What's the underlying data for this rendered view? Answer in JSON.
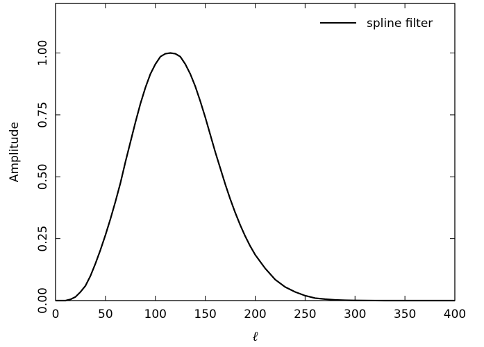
{
  "chart_data": {
    "type": "line",
    "title": "",
    "xlabel": "ℓ",
    "ylabel": "Amplitude",
    "xlim": [
      0,
      400
    ],
    "ylim": [
      0,
      1.2
    ],
    "grid": false,
    "legend_position": "top-right",
    "x_ticks": [
      0,
      50,
      100,
      150,
      200,
      250,
      300,
      350,
      400
    ],
    "x_tick_labels": [
      "0",
      "50",
      "100",
      "150",
      "200",
      "250",
      "300",
      "350",
      "400"
    ],
    "y_ticks": [
      0,
      0.25,
      0.5,
      0.75,
      1.0
    ],
    "y_tick_labels": [
      "0.00",
      "0.25",
      "0.50",
      "0.75",
      "1.00"
    ],
    "series": [
      {
        "name": "spline filter",
        "color": "#000000",
        "x": [
          0,
          10,
          15,
          20,
          25,
          30,
          35,
          40,
          45,
          50,
          55,
          60,
          65,
          70,
          75,
          80,
          85,
          90,
          95,
          100,
          105,
          110,
          115,
          120,
          125,
          130,
          135,
          140,
          145,
          150,
          155,
          160,
          165,
          170,
          175,
          180,
          185,
          190,
          195,
          200,
          210,
          220,
          230,
          240,
          250,
          260,
          270,
          280,
          290,
          300,
          310,
          320,
          330,
          340,
          350,
          400
        ],
        "y": [
          0.0,
          0.0,
          0.005,
          0.015,
          0.035,
          0.06,
          0.1,
          0.15,
          0.205,
          0.265,
          0.33,
          0.4,
          0.475,
          0.56,
          0.64,
          0.72,
          0.795,
          0.86,
          0.915,
          0.955,
          0.985,
          0.997,
          1.0,
          0.997,
          0.985,
          0.955,
          0.915,
          0.865,
          0.805,
          0.74,
          0.67,
          0.6,
          0.535,
          0.47,
          0.41,
          0.355,
          0.305,
          0.26,
          0.22,
          0.185,
          0.13,
          0.085,
          0.055,
          0.035,
          0.02,
          0.01,
          0.006,
          0.003,
          0.0015,
          0.0007,
          0.0003,
          0.0001,
          0.0,
          0.0,
          0.0,
          0.0
        ]
      }
    ]
  }
}
